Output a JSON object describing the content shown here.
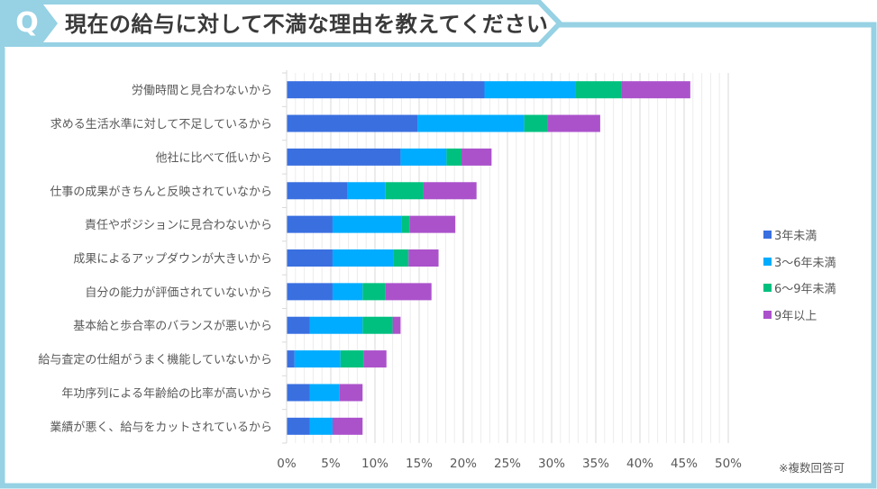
{
  "header": {
    "badge": "Q",
    "title": "現在の給与に対して不満な理由を教えてください"
  },
  "colors": {
    "frame": "#96d1e4",
    "series": [
      "#3a6fe0",
      "#00acff",
      "#00c07f",
      "#ab52cb"
    ],
    "grid_minor": "#ececec",
    "grid_major": "#d9d9d9"
  },
  "note": "※複数回答可",
  "chart_data": {
    "type": "bar",
    "orientation": "horizontal",
    "stacked": true,
    "title": "現在の給与に対して不満な理由を教えてください",
    "xlabel": "",
    "ylabel": "",
    "xlim": [
      0,
      50
    ],
    "x_ticks": [
      "0%",
      "5%",
      "10%",
      "15%",
      "20%",
      "25%",
      "30%",
      "35%",
      "40%",
      "45%",
      "50%"
    ],
    "grid": true,
    "legend_position": "right",
    "categories": [
      "労働時間と見合わないから",
      "求める生活水準に対して不足しているから",
      "他社に比べて低いから",
      "仕事の成果がきちんと反映されていなから",
      "責任やポジションに見合わないから",
      "成果によるアップダウンが大きいから",
      "自分の能力が評価されていないから",
      "基本給と歩合率のバランスが悪いから",
      "給与査定の仕組がうまく機能していないから",
      "年功序列による年齢給の比率が高いから",
      "業績が悪く、給与をカットされているから"
    ],
    "series": [
      {
        "name": "3年未満",
        "values": [
          22.4,
          14.8,
          12.9,
          6.9,
          5.2,
          5.2,
          5.2,
          2.6,
          0.9,
          2.6,
          2.6
        ]
      },
      {
        "name": "3〜6年未満",
        "values": [
          10.3,
          12.1,
          5.2,
          4.3,
          7.8,
          6.9,
          3.4,
          6.0,
          5.2,
          3.4,
          2.6
        ]
      },
      {
        "name": "6〜9年未満",
        "values": [
          5.2,
          2.6,
          1.7,
          4.3,
          0.9,
          1.7,
          2.6,
          3.4,
          2.6,
          0.0,
          0.0
        ]
      },
      {
        "name": "9年以上",
        "values": [
          7.8,
          6.0,
          3.4,
          6.0,
          5.2,
          3.4,
          5.2,
          0.9,
          2.6,
          2.6,
          3.4
        ]
      }
    ]
  }
}
